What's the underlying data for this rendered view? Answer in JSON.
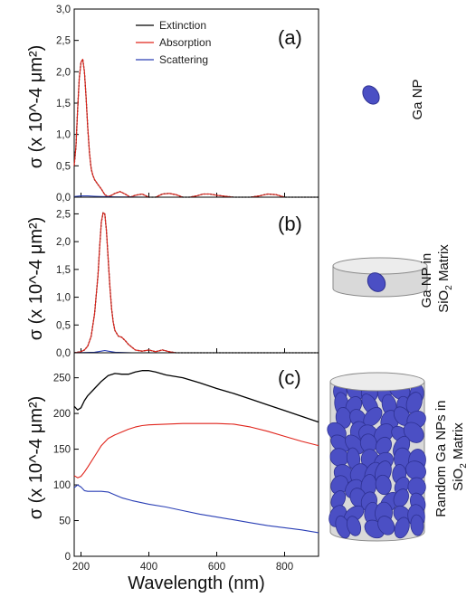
{
  "chart_data": [
    {
      "id": "a",
      "type": "line",
      "panel_label": "(a)",
      "ylabel": "σ (x 10^-4 μm²)",
      "ylim": [
        0,
        3.0
      ],
      "yticks": [
        0,
        0.5,
        1.0,
        1.5,
        2.0,
        2.5,
        3.0
      ],
      "ytick_labels": [
        "0,0",
        "0,5",
        "1,0",
        "1,5",
        "2,0",
        "2,5",
        "3,0"
      ],
      "xlim": [
        180,
        900
      ],
      "legend_position": "top-center",
      "series": [
        {
          "name": "Extinction",
          "color": "#000000",
          "x": [
            180,
            185,
            190,
            195,
            200,
            205,
            210,
            215,
            220,
            225,
            230,
            235,
            240,
            250,
            260,
            270,
            280,
            290,
            300,
            315,
            330,
            345,
            360,
            380,
            400,
            420,
            440,
            460,
            480,
            500,
            520,
            540,
            560,
            580,
            600,
            650,
            700,
            725,
            750,
            775,
            800,
            900
          ],
          "y": [
            0.5,
            0.8,
            1.4,
            1.9,
            2.15,
            2.2,
            2.0,
            1.6,
            1.1,
            0.7,
            0.45,
            0.35,
            0.28,
            0.2,
            0.13,
            0.04,
            0.01,
            0.03,
            0.06,
            0.09,
            0.05,
            0.0,
            0.03,
            0.05,
            0.0,
            0.0,
            0.05,
            0.06,
            0.04,
            0.0,
            0.0,
            0.02,
            0.05,
            0.05,
            0.03,
            0.0,
            0.0,
            0.02,
            0.05,
            0.04,
            0.0,
            0.0
          ]
        },
        {
          "name": "Absorption",
          "color": "#e0241b",
          "x": [
            180,
            185,
            190,
            195,
            200,
            205,
            210,
            215,
            220,
            225,
            230,
            235,
            240,
            250,
            260,
            270,
            280,
            290,
            300,
            315,
            330,
            345,
            360,
            380,
            400,
            420,
            440,
            460,
            480,
            500,
            520,
            540,
            560,
            580,
            600,
            650,
            700,
            725,
            750,
            775,
            800,
            900
          ],
          "y": [
            0.5,
            0.8,
            1.4,
            1.9,
            2.15,
            2.2,
            2.0,
            1.6,
            1.1,
            0.7,
            0.45,
            0.35,
            0.28,
            0.2,
            0.13,
            0.04,
            0.01,
            0.03,
            0.06,
            0.09,
            0.05,
            0.0,
            0.03,
            0.05,
            0.0,
            0.0,
            0.05,
            0.06,
            0.04,
            0.0,
            0.0,
            0.02,
            0.05,
            0.05,
            0.03,
            0.0,
            0.0,
            0.02,
            0.05,
            0.04,
            0.0,
            0.0
          ]
        },
        {
          "name": "Scattering",
          "color": "#2a3fb5",
          "x": [
            180,
            200,
            220,
            240,
            260,
            300,
            400,
            500,
            600,
            700,
            800,
            900
          ],
          "y": [
            0.01,
            0.02,
            0.02,
            0.015,
            0.01,
            0.005,
            0.0,
            0.0,
            0.0,
            0.0,
            0.0,
            0.0
          ]
        }
      ]
    },
    {
      "id": "b",
      "type": "line",
      "panel_label": "(b)",
      "ylabel": "σ (x 10^-4 μm²)",
      "ylim": [
        0,
        2.8
      ],
      "yticks": [
        0,
        0.5,
        1.0,
        1.5,
        2.0,
        2.5
      ],
      "ytick_labels": [
        "0,0",
        "0,5",
        "1,0",
        "1,5",
        "2,0",
        "2,5"
      ],
      "xlim": [
        180,
        900
      ],
      "series": [
        {
          "name": "Extinction",
          "color": "#000000",
          "x": [
            180,
            200,
            210,
            220,
            230,
            240,
            250,
            255,
            260,
            265,
            270,
            275,
            280,
            285,
            290,
            295,
            300,
            310,
            320,
            330,
            340,
            350,
            360,
            380,
            400,
            420,
            440,
            460,
            480,
            500,
            600,
            700,
            800,
            900
          ],
          "y": [
            0.0,
            0.02,
            0.05,
            0.12,
            0.3,
            0.7,
            1.4,
            1.9,
            2.35,
            2.52,
            2.5,
            2.2,
            1.7,
            1.2,
            0.8,
            0.55,
            0.4,
            0.3,
            0.28,
            0.22,
            0.15,
            0.1,
            0.05,
            0.03,
            0.05,
            0.02,
            0.05,
            0.02,
            0.0,
            0.0,
            0.0,
            0.0,
            0.0,
            0.0
          ]
        },
        {
          "name": "Absorption",
          "color": "#e0241b",
          "x": [
            180,
            200,
            210,
            220,
            230,
            240,
            250,
            255,
            260,
            265,
            270,
            275,
            280,
            285,
            290,
            295,
            300,
            310,
            320,
            330,
            340,
            350,
            360,
            380,
            400,
            420,
            440,
            460,
            480,
            500,
            600,
            700,
            800,
            900
          ],
          "y": [
            0.0,
            0.02,
            0.05,
            0.12,
            0.3,
            0.7,
            1.4,
            1.9,
            2.35,
            2.52,
            2.5,
            2.2,
            1.7,
            1.2,
            0.8,
            0.55,
            0.4,
            0.3,
            0.28,
            0.22,
            0.15,
            0.1,
            0.05,
            0.03,
            0.05,
            0.02,
            0.05,
            0.02,
            0.0,
            0.0,
            0.0,
            0.0,
            0.0,
            0.0
          ]
        },
        {
          "name": "Scattering",
          "color": "#2a3fb5",
          "x": [
            180,
            240,
            260,
            270,
            280,
            300,
            350,
            400,
            900
          ],
          "y": [
            0.0,
            0.01,
            0.03,
            0.04,
            0.03,
            0.01,
            0.0,
            0.0,
            0.0
          ]
        }
      ]
    },
    {
      "id": "c",
      "type": "line",
      "panel_label": "(c)",
      "ylabel": "σ (x 10^-4 μm²)",
      "ylim": [
        0,
        285
      ],
      "yticks": [
        0,
        50,
        100,
        150,
        200,
        250
      ],
      "ytick_labels": [
        "0",
        "50",
        "100",
        "150",
        "200",
        "250"
      ],
      "xlim": [
        180,
        900
      ],
      "xticks": [
        200,
        400,
        600,
        800
      ],
      "xtick_labels": [
        "200",
        "400",
        "600",
        "800"
      ],
      "xlabel": "Wavelength (nm)",
      "series": [
        {
          "name": "Extinction",
          "color": "#000000",
          "x": [
            180,
            190,
            200,
            210,
            220,
            240,
            260,
            280,
            300,
            320,
            340,
            360,
            380,
            400,
            420,
            450,
            500,
            550,
            600,
            650,
            700,
            750,
            800,
            850,
            900
          ],
          "y": [
            210,
            205,
            208,
            218,
            225,
            235,
            245,
            253,
            256,
            255,
            255,
            258,
            260,
            260,
            258,
            254,
            250,
            243,
            235,
            228,
            220,
            212,
            204,
            196,
            188
          ]
        },
        {
          "name": "Absorption",
          "color": "#e0241b",
          "x": [
            180,
            190,
            200,
            210,
            220,
            240,
            260,
            280,
            300,
            320,
            340,
            360,
            380,
            400,
            450,
            500,
            550,
            600,
            650,
            700,
            750,
            800,
            850,
            900
          ],
          "y": [
            113,
            110,
            112,
            118,
            125,
            140,
            155,
            165,
            170,
            174,
            178,
            181,
            183,
            184,
            185,
            186,
            186,
            186,
            185,
            181,
            175,
            168,
            161,
            155
          ]
        },
        {
          "name": "Scattering",
          "color": "#2a3fb5",
          "x": [
            180,
            190,
            200,
            210,
            220,
            240,
            260,
            280,
            300,
            320,
            350,
            400,
            450,
            500,
            550,
            600,
            650,
            700,
            750,
            800,
            850,
            900
          ],
          "y": [
            96,
            100,
            97,
            92,
            91,
            91,
            91,
            90,
            86,
            82,
            78,
            73,
            69,
            64,
            59,
            55,
            51,
            47,
            43,
            40,
            37,
            33
          ]
        }
      ]
    }
  ],
  "side_labels": {
    "a": "Ga NP",
    "b": [
      "Ga NP in",
      "SiO",
      "2",
      " Matrix"
    ],
    "c": [
      "Random Ga NPs in",
      "SiO",
      "2",
      " Matrix"
    ]
  },
  "illustration_colors": {
    "particle": "#4b4fc4",
    "particle_dark": "#2e3192",
    "cylinder": "#d9d9d9",
    "cylinder_top": "#ececec",
    "cylinder_edge": "#8a8a8a"
  }
}
